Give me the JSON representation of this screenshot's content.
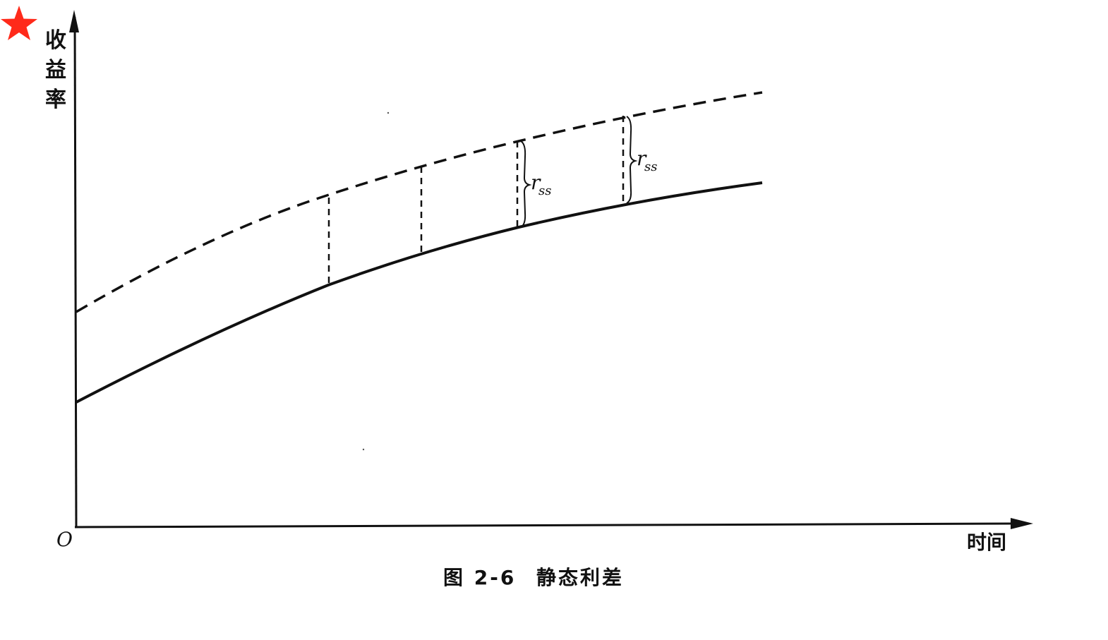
{
  "marker": {
    "icon": "red-star-icon",
    "color": "#ff2a1a"
  },
  "axes": {
    "y_label_chars": [
      "收",
      "益",
      "率"
    ],
    "x_label": "时间",
    "origin_label": "O"
  },
  "spread_labels": [
    {
      "main": "r",
      "sub": "ss"
    },
    {
      "main": "r",
      "sub": "ss"
    }
  ],
  "caption": {
    "figure_number": "图 2-6",
    "title": "静态利差"
  },
  "legend_style": {
    "solid_curve": "solid",
    "dashed_curve": "dashed"
  }
}
